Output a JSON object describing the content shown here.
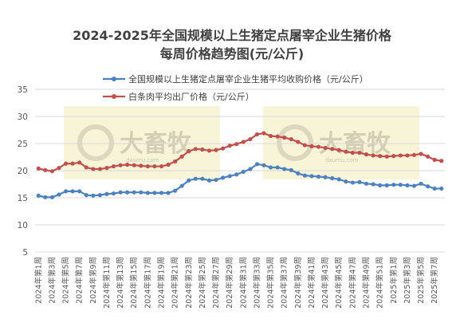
{
  "chart_data": {
    "type": "line",
    "title_line1": "2024-2025年全国规模以上生猪定点屠宰企业生猪价格",
    "title_line2": "每周价格趋势图(元/公斤)",
    "ylim": [
      5,
      35
    ],
    "yticks": [
      5,
      10,
      15,
      20,
      25,
      30,
      35
    ],
    "grid": true,
    "legend_position": "top",
    "watermark": {
      "text": "大畜牧",
      "sub": "dxumu.com"
    },
    "x_tick_labels": [
      "2024年第1周",
      "2024年第3周",
      "2024年第5周",
      "2024年第7周",
      "2024年第9周",
      "2024年第11周",
      "2024年第13周",
      "2024年第15周",
      "2024年第17周",
      "2024年第19周",
      "2024年第21周",
      "2024年第23周",
      "2024年第25周",
      "2024年第27周",
      "2024年第29周",
      "2024年第31周",
      "2024年第33周",
      "2024年第35周",
      "2024年第37周",
      "2024年第39周",
      "2024年第41周",
      "2024年第43周",
      "2024年第45周",
      "2024年第47周",
      "2024年第49周",
      "2024年第51周",
      "2025年第1周",
      "2025年第3周",
      "2025年第5周",
      "2025年第7周"
    ],
    "series": [
      {
        "name": "全国规模以上生猪定点屠宰企业生猪平均收购价格（元/公斤）",
        "color": "#4e81bd",
        "values": [
          15.4,
          15.1,
          15.1,
          15.6,
          16.2,
          16.2,
          16.2,
          15.5,
          15.4,
          15.5,
          15.7,
          15.8,
          16.0,
          16.0,
          16.0,
          16.0,
          15.9,
          15.9,
          15.9,
          15.9,
          16.3,
          17.2,
          18.2,
          18.5,
          18.5,
          18.2,
          18.3,
          18.7,
          19.0,
          19.3,
          19.8,
          20.3,
          21.2,
          21.0,
          20.6,
          20.6,
          20.3,
          20.1,
          19.5,
          19.1,
          19.0,
          18.9,
          18.8,
          18.6,
          18.4,
          18.0,
          17.8,
          17.9,
          17.6,
          17.5,
          17.3,
          17.3,
          17.4,
          17.4,
          17.3,
          17.2,
          17.6,
          17.1,
          16.7,
          16.7
        ]
      },
      {
        "name": "白条肉平均出厂价格（元/公斤）",
        "color": "#c0504d",
        "values": [
          20.4,
          20.1,
          19.9,
          20.5,
          21.3,
          21.3,
          21.5,
          20.6,
          20.3,
          20.3,
          20.5,
          20.8,
          21.0,
          21.1,
          21.0,
          20.9,
          20.8,
          20.8,
          20.8,
          21.1,
          21.7,
          22.6,
          23.6,
          24.0,
          23.9,
          23.7,
          23.8,
          24.1,
          24.6,
          24.9,
          25.3,
          25.8,
          26.7,
          26.9,
          26.4,
          26.3,
          26.1,
          25.8,
          25.3,
          24.7,
          24.5,
          24.4,
          24.2,
          24.0,
          23.8,
          23.5,
          23.3,
          23.3,
          23.0,
          22.8,
          22.7,
          22.6,
          22.7,
          22.8,
          22.8,
          22.9,
          23.1,
          22.6,
          22.0,
          21.8
        ]
      }
    ]
  }
}
